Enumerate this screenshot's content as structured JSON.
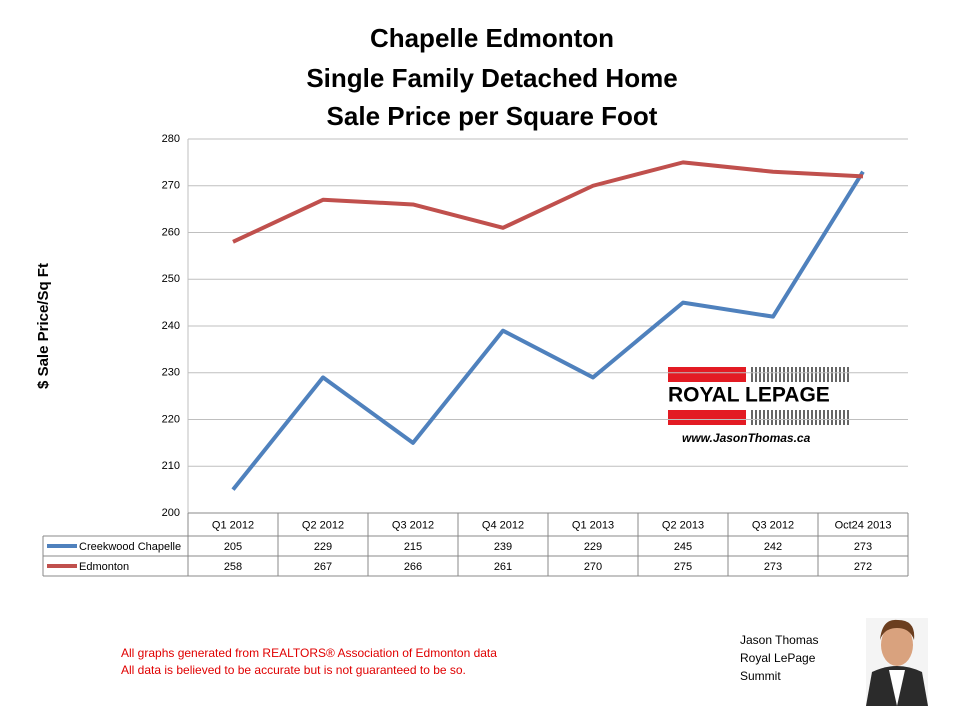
{
  "chart_data": {
    "type": "line",
    "title": [
      "Chapelle Edmonton",
      "Single Family Detached Home",
      "Sale Price per Square Foot"
    ],
    "y_label": "$ Sale Price/Sq Ft",
    "categories": [
      "Q1 2012",
      "Q2 2012",
      "Q3 2012",
      "Q4 2012",
      "Q1 2013",
      "Q2 2013",
      "Q3 2012",
      "Oct24 2013"
    ],
    "series": [
      {
        "name": "Creekwood Chapelle",
        "color": "#4f81bd",
        "values": [
          205,
          229,
          215,
          239,
          229,
          245,
          242,
          273
        ]
      },
      {
        "name": "Edmonton",
        "color": "#c0504d",
        "values": [
          258,
          267,
          266,
          261,
          270,
          275,
          273,
          272
        ]
      }
    ],
    "ylim": [
      200,
      280
    ],
    "yticks": [
      200,
      210,
      220,
      230,
      240,
      250,
      260,
      270,
      280
    ],
    "grid": true,
    "data_table": true
  },
  "logo": {
    "name": "ROYAL LEPAGE",
    "website": "www.JasonThomas.ca"
  },
  "footnotes": [
    "All graphs generated from REALTORS® Association of Edmonton data",
    "All data is believed to be accurate but is not guaranteed to be so."
  ],
  "signature": [
    "Jason Thomas",
    "Royal LePage",
    "Summit"
  ]
}
